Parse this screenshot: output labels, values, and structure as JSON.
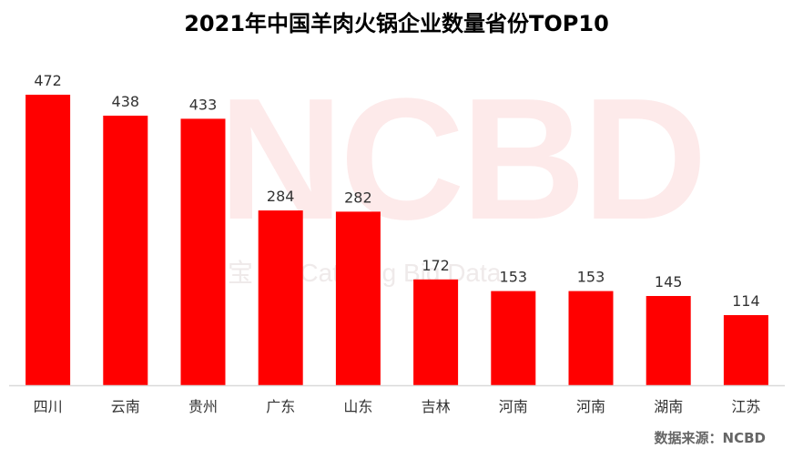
{
  "title": "2021年中国羊肉火锅企业数量省份TOP10",
  "watermark": {
    "main": "NCBD",
    "sub": "宝  Ne  Catering Big Data"
  },
  "source": "数据来源：NCBD",
  "colors": {
    "bar": "#ff0000",
    "axis": "#d9d9d9",
    "label": "#333333"
  },
  "chart_data": {
    "type": "bar",
    "title": "2021年中国羊肉火锅企业数量省份TOP10",
    "categories": [
      "四川",
      "云南",
      "贵州",
      "广东",
      "山东",
      "吉林",
      "河南",
      "河南",
      "湖南",
      "江苏"
    ],
    "values": [
      472,
      438,
      433,
      284,
      282,
      172,
      153,
      153,
      145,
      114
    ],
    "xlabel": "",
    "ylabel": "",
    "ylim": [
      0,
      472
    ],
    "grid": false,
    "legend": "none",
    "data_labels": true
  }
}
